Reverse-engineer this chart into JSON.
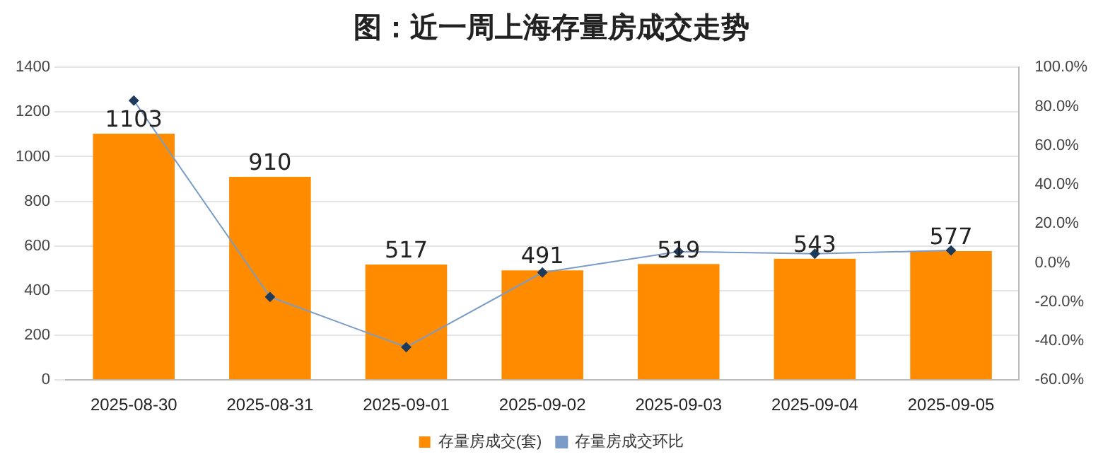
{
  "chart_data": {
    "type": "bar",
    "title": "图：近一周上海存量房成交走势",
    "categories": [
      "2025-08-30",
      "2025-08-31",
      "2025-09-01",
      "2025-09-02",
      "2025-09-03",
      "2025-09-04",
      "2025-09-05"
    ],
    "series": [
      {
        "name": "存量房成交(套)",
        "color": "#ff8c00",
        "values": [
          1103,
          910,
          517,
          491,
          519,
          543,
          577
        ],
        "value_labels": [
          "1103",
          "910",
          "517",
          "491",
          "519",
          "543",
          "577"
        ]
      },
      {
        "name": "存量房成交环比",
        "type": "line",
        "axis": "y2",
        "color": "#7a9cc6",
        "marker": "diamond",
        "values": [
          83.0,
          -17.5,
          -43.2,
          -5.0,
          5.7,
          4.6,
          6.3
        ]
      }
    ],
    "ylim": [
      0,
      1400
    ],
    "yticks": [
      0,
      200,
      400,
      600,
      800,
      1000,
      1200,
      1400
    ],
    "y2lim": [
      -60,
      100
    ],
    "y2ticks": [
      {
        "value": -60,
        "label": "-60.0%"
      },
      {
        "value": -40,
        "label": "-40.0%"
      },
      {
        "value": -20,
        "label": "-20.0%"
      },
      {
        "value": 0,
        "label": "0.0%"
      },
      {
        "value": 20,
        "label": "20.0%"
      },
      {
        "value": 40,
        "label": "40.0%"
      },
      {
        "value": 60,
        "label": "60.0%"
      },
      {
        "value": 80,
        "label": "80.0%"
      },
      {
        "value": 100,
        "label": "100.0%"
      }
    ],
    "grid": "y",
    "legend": "bottom"
  }
}
